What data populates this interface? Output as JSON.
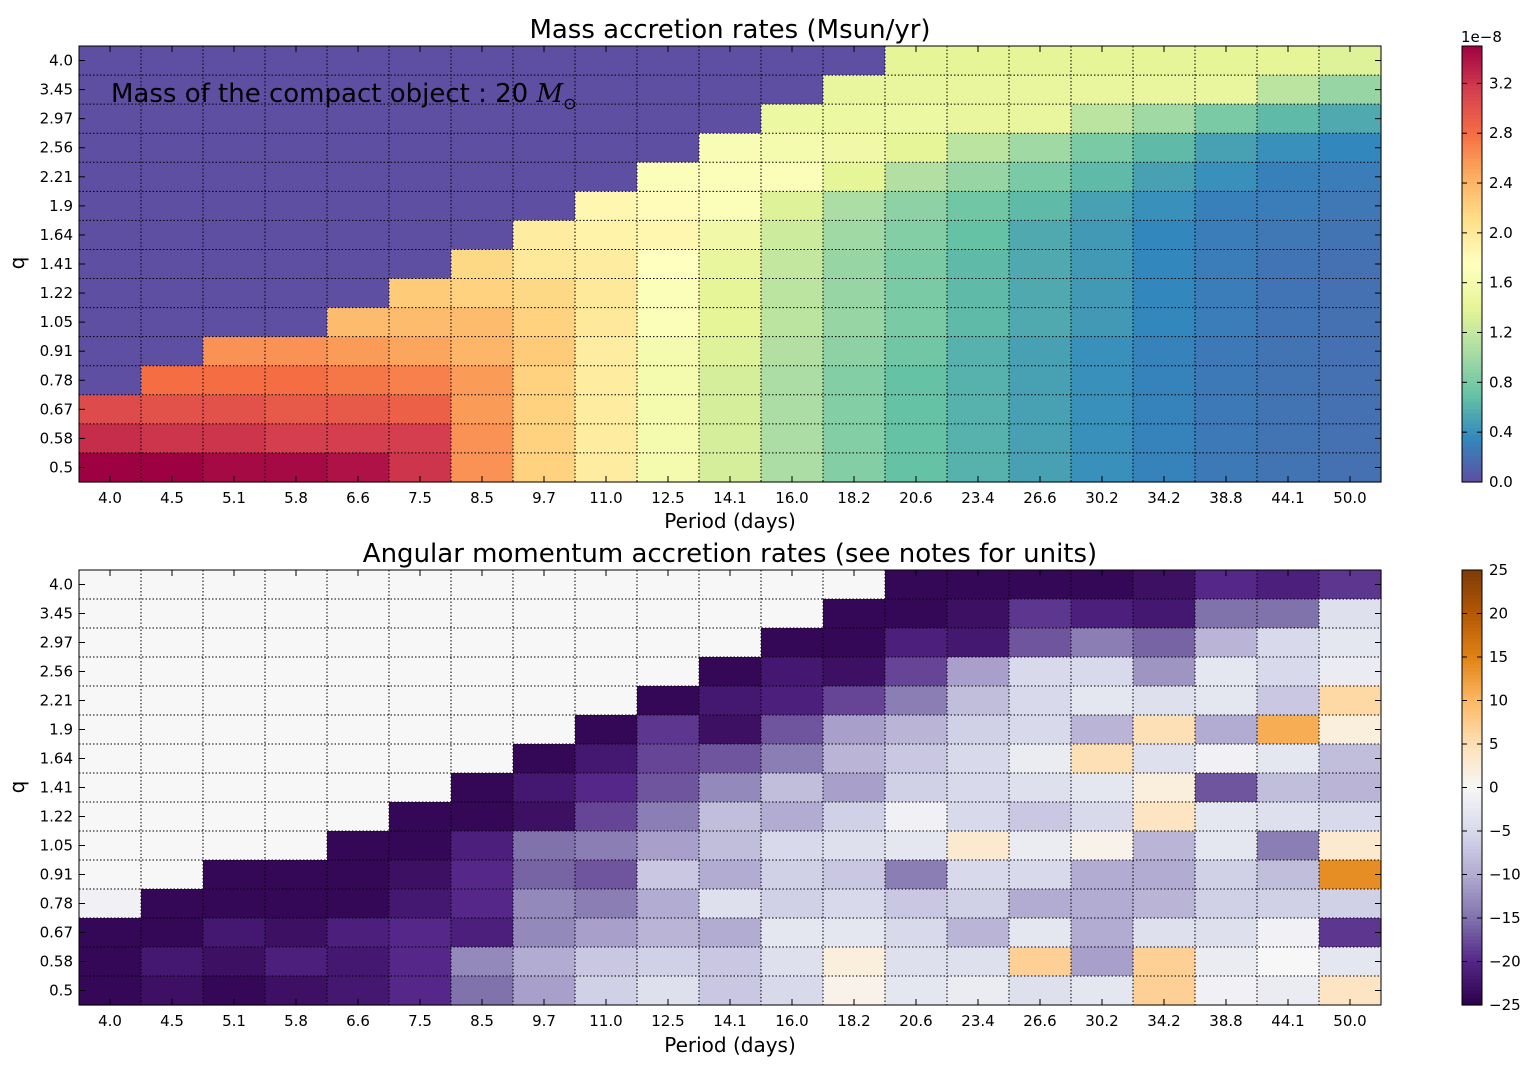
{
  "chart_data": [
    {
      "type": "heatmap",
      "title": "Mass accretion rates (Msun/yr)",
      "xlabel": "Period (days)",
      "ylabel": "q",
      "annotation_prefix": "Mass of the compact object : 20 ",
      "annotation_math": "M",
      "annotation_sub": "⊙",
      "x": [
        "4.0",
        "4.5",
        "5.1",
        "5.8",
        "6.6",
        "7.5",
        "8.5",
        "9.7",
        "11.0",
        "12.5",
        "14.1",
        "16.0",
        "18.2",
        "20.6",
        "23.4",
        "26.6",
        "30.2",
        "34.2",
        "38.8",
        "44.1",
        "50.0"
      ],
      "y": [
        "4.0",
        "3.45",
        "2.97",
        "2.56",
        "2.21",
        "1.9",
        "1.64",
        "1.41",
        "1.22",
        "1.05",
        "0.91",
        "0.78",
        "0.67",
        "0.58",
        "0.5"
      ],
      "colormap": "Spectral_r",
      "vmin": 0.0,
      "vmax": 3.5,
      "colorbar_offset_label": "1e−8",
      "colorbar_ticks": [
        "0.0",
        "0.4",
        "0.8",
        "1.2",
        "1.6",
        "2.0",
        "2.4",
        "2.8",
        "3.2"
      ],
      "values_unit_multiplier": "1e-8",
      "values": [
        [
          0,
          0,
          0,
          0,
          0,
          0,
          0,
          0,
          0,
          0,
          0,
          0,
          0,
          1.4,
          1.4,
          1.4,
          1.4,
          1.4,
          1.4,
          1.4,
          1.35
        ],
        [
          0,
          0,
          0,
          0,
          0,
          0,
          0,
          0,
          0,
          0,
          0,
          0,
          1.45,
          1.45,
          1.45,
          1.45,
          1.45,
          1.45,
          1.45,
          1.15,
          0.95
        ],
        [
          0,
          0,
          0,
          0,
          0,
          0,
          0,
          0,
          0,
          0,
          0,
          1.5,
          1.5,
          1.5,
          1.45,
          1.45,
          1.15,
          1.0,
          0.8,
          0.65,
          0.55
        ],
        [
          0,
          0,
          0,
          0,
          0,
          0,
          0,
          0,
          0,
          0,
          1.65,
          1.6,
          1.55,
          1.4,
          1.15,
          1.0,
          0.8,
          0.65,
          0.5,
          0.4,
          0.35
        ],
        [
          0,
          0,
          0,
          0,
          0,
          0,
          0,
          0,
          0,
          1.7,
          1.7,
          1.7,
          1.4,
          1.1,
          0.95,
          0.8,
          0.65,
          0.5,
          0.4,
          0.3,
          0.28
        ],
        [
          0,
          0,
          0,
          0,
          0,
          0,
          0,
          0,
          1.85,
          1.8,
          1.7,
          1.35,
          1.05,
          0.9,
          0.75,
          0.65,
          0.5,
          0.4,
          0.3,
          0.28,
          0.25
        ],
        [
          0,
          0,
          0,
          0,
          0,
          0,
          0,
          1.95,
          1.9,
          1.85,
          1.55,
          1.25,
          1.0,
          0.85,
          0.7,
          0.55,
          0.45,
          0.35,
          0.28,
          0.25,
          0.22
        ],
        [
          0,
          0,
          0,
          0,
          0,
          0,
          2.15,
          2.0,
          1.95,
          1.75,
          1.45,
          1.2,
          0.95,
          0.8,
          0.65,
          0.55,
          0.45,
          0.35,
          0.28,
          0.23,
          0.2
        ],
        [
          0,
          0,
          0,
          0,
          0,
          2.25,
          2.2,
          2.15,
          2.0,
          1.7,
          1.4,
          1.15,
          0.95,
          0.8,
          0.65,
          0.55,
          0.45,
          0.35,
          0.28,
          0.23,
          0.2
        ],
        [
          0,
          0,
          0,
          0,
          2.35,
          2.35,
          2.35,
          2.2,
          2.0,
          1.7,
          1.4,
          1.15,
          0.95,
          0.8,
          0.65,
          0.55,
          0.45,
          0.35,
          0.28,
          0.23,
          0.2
        ],
        [
          0,
          0,
          2.6,
          2.6,
          2.55,
          2.5,
          2.4,
          2.25,
          1.95,
          1.6,
          1.35,
          1.1,
          0.9,
          0.75,
          0.6,
          0.5,
          0.4,
          0.32,
          0.26,
          0.22,
          0.2
        ],
        [
          0,
          2.8,
          2.8,
          2.8,
          2.75,
          2.7,
          2.55,
          2.2,
          1.95,
          1.6,
          1.3,
          1.05,
          0.85,
          0.7,
          0.6,
          0.5,
          0.4,
          0.32,
          0.26,
          0.22,
          0.2
        ],
        [
          3.05,
          3.0,
          3.0,
          2.95,
          2.95,
          2.9,
          2.55,
          2.2,
          1.95,
          1.6,
          1.3,
          1.05,
          0.85,
          0.7,
          0.6,
          0.5,
          0.4,
          0.32,
          0.26,
          0.22,
          0.2
        ],
        [
          3.25,
          3.2,
          3.2,
          3.15,
          3.15,
          3.15,
          2.6,
          2.2,
          1.95,
          1.6,
          1.3,
          1.05,
          0.85,
          0.7,
          0.6,
          0.5,
          0.4,
          0.32,
          0.26,
          0.22,
          0.2
        ],
        [
          3.5,
          3.5,
          3.45,
          3.45,
          3.4,
          3.2,
          2.6,
          2.2,
          1.95,
          1.6,
          1.3,
          1.05,
          0.85,
          0.7,
          0.6,
          0.5,
          0.4,
          0.32,
          0.26,
          0.22,
          0.2
        ]
      ]
    },
    {
      "type": "heatmap",
      "title": "Angular momentum accretion rates (see notes for units)",
      "xlabel": "Period (days)",
      "ylabel": "q",
      "x": [
        "4.0",
        "4.5",
        "5.1",
        "5.8",
        "6.6",
        "7.5",
        "8.5",
        "9.7",
        "11.0",
        "12.5",
        "14.1",
        "16.0",
        "18.2",
        "20.6",
        "23.4",
        "26.6",
        "30.2",
        "34.2",
        "38.8",
        "44.1",
        "50.0"
      ],
      "y": [
        "4.0",
        "3.45",
        "2.97",
        "2.56",
        "2.21",
        "1.9",
        "1.64",
        "1.41",
        "1.22",
        "1.05",
        "0.91",
        "0.78",
        "0.67",
        "0.58",
        "0.5"
      ],
      "colormap": "PuOr_r",
      "vmin": -25,
      "vmax": 25,
      "colorbar_ticks": [
        "−25",
        "−20",
        "−15",
        "−10",
        "−5",
        "0",
        "5",
        "10",
        "15",
        "20",
        "25"
      ],
      "values": [
        [
          0,
          0,
          0,
          0,
          0,
          0,
          0,
          0,
          0,
          0,
          0,
          0,
          0,
          -24,
          -24,
          -24,
          -24,
          -23,
          -20,
          -21,
          -19
        ],
        [
          0,
          0,
          0,
          0,
          0,
          0,
          0,
          0,
          0,
          0,
          0,
          0,
          -24,
          -24,
          -23,
          -19,
          -21,
          -22,
          -15,
          -15,
          -4
        ],
        [
          0,
          0,
          0,
          0,
          0,
          0,
          0,
          0,
          0,
          0,
          0,
          -24,
          -24,
          -21,
          -22,
          -17,
          -14,
          -16,
          -9,
          -5,
          -3
        ],
        [
          0,
          0,
          0,
          0,
          0,
          0,
          0,
          0,
          0,
          0,
          -24,
          -22,
          -23,
          -18,
          -11,
          -5,
          -5,
          -12,
          -3,
          -5,
          -2
        ],
        [
          0,
          0,
          0,
          0,
          0,
          0,
          0,
          0,
          0,
          -24,
          -22,
          -21,
          -18,
          -14,
          -8,
          -5,
          -3,
          -4,
          -3,
          -7,
          6
        ],
        [
          0,
          0,
          0,
          0,
          0,
          0,
          0,
          0,
          -24,
          -19,
          -23,
          -17,
          -11,
          -9,
          -6,
          -5,
          -9,
          5,
          -10,
          11,
          2
        ],
        [
          0,
          0,
          0,
          0,
          0,
          0,
          0,
          -24,
          -22,
          -18,
          -17,
          -14,
          -9,
          -7,
          -5,
          -2,
          5,
          -4,
          -1,
          -3,
          -8
        ],
        [
          0,
          0,
          0,
          0,
          0,
          0,
          -24,
          -22,
          -20,
          -17,
          -13,
          -8,
          -11,
          -6,
          -5,
          -4,
          -3,
          2,
          -17,
          -8,
          -9
        ],
        [
          0,
          0,
          0,
          0,
          0,
          -24,
          -24,
          -23,
          -18,
          -14,
          -8,
          -10,
          -6,
          -1,
          -5,
          -7,
          -5,
          4,
          -3,
          -4,
          -5
        ],
        [
          0,
          0,
          0,
          0,
          -24,
          -24,
          -21,
          -15,
          -14,
          -11,
          -8,
          -5,
          -4,
          -3,
          3,
          -2,
          1,
          -9,
          -3,
          -14,
          3
        ],
        [
          0,
          0,
          -24,
          -24,
          -24,
          -23,
          -20,
          -16,
          -17,
          -7,
          -10,
          -6,
          -7,
          -14,
          -5,
          -5,
          -10,
          -10,
          -6,
          -8,
          14
        ],
        [
          -1,
          -24,
          -24,
          -24,
          -24,
          -22,
          -20,
          -13,
          -14,
          -10,
          -4,
          -6,
          -5,
          -7,
          -6,
          -10,
          -10,
          -9,
          -6,
          -6,
          -6
        ],
        [
          -24,
          -24,
          -22,
          -23,
          -21,
          -20,
          -21,
          -13,
          -11,
          -9,
          -10,
          -3,
          -3,
          -5,
          -9,
          -3,
          -10,
          -4,
          -4,
          -1,
          -19
        ],
        [
          -24,
          -22,
          -23,
          -21,
          -22,
          -20,
          -13,
          -10,
          -7,
          -6,
          -7,
          -4,
          2,
          -4,
          -4,
          7,
          -11,
          7,
          -2,
          0,
          -3
        ],
        [
          -24,
          -23,
          -24,
          -23,
          -22,
          -20,
          -15,
          -11,
          -6,
          -4,
          -7,
          -5,
          1,
          -3,
          -2,
          -4,
          -3,
          7,
          -1,
          -2,
          4
        ]
      ]
    }
  ]
}
